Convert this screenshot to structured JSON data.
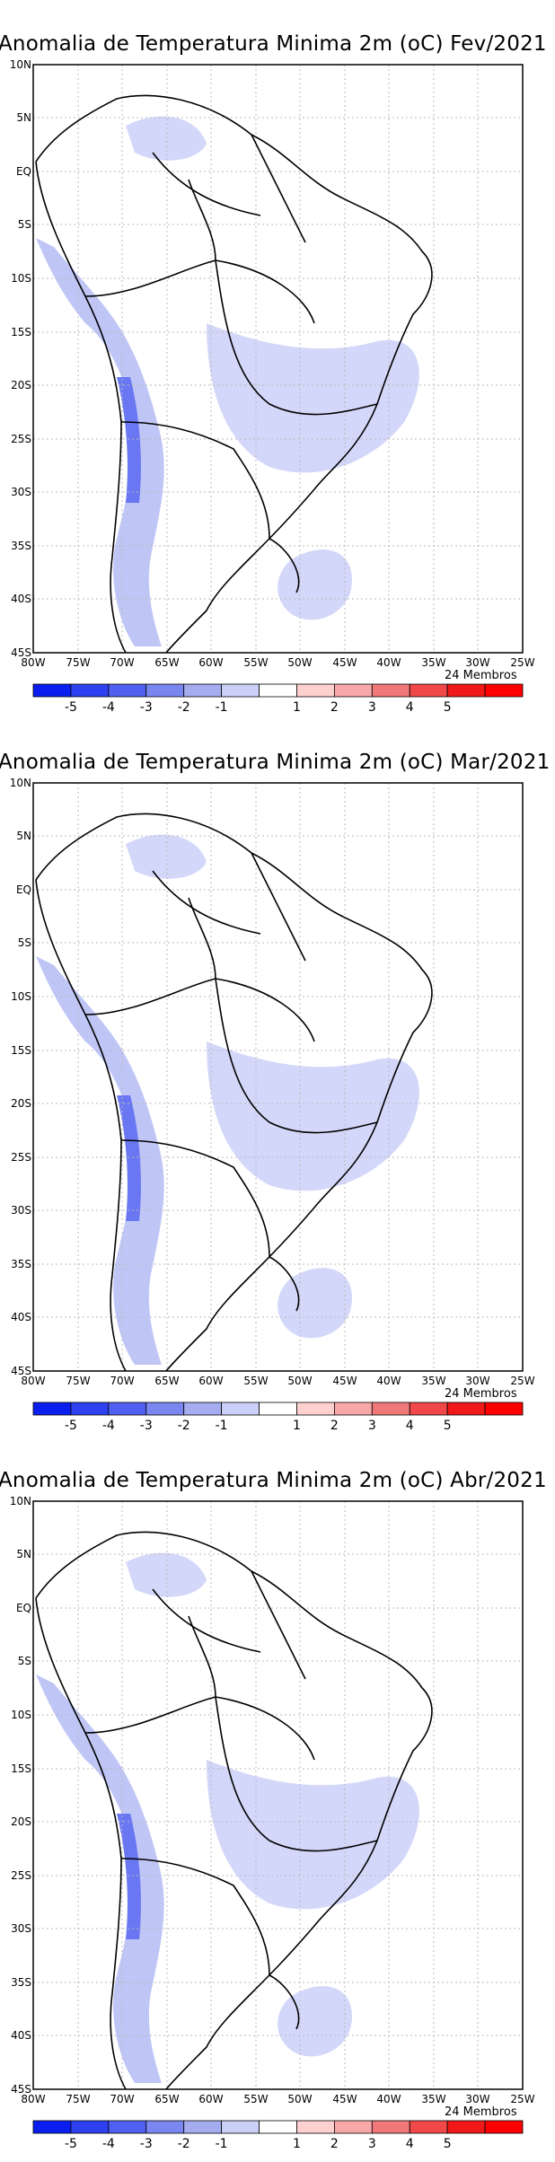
{
  "panels": [
    {
      "title": "Anomalia de Temperatura Minima 2m (oC) Fev/2021",
      "members": "24 Membros"
    },
    {
      "title": "Anomalia de Temperatura Minima 2m (oC) Mar/2021",
      "members": "24 Membros"
    },
    {
      "title": "Anomalia de Temperatura Minima 2m (oC) Abr/2021",
      "members": "24 Membros"
    }
  ],
  "map_extent": {
    "lon": [
      -80,
      -25
    ],
    "lat": [
      -45,
      10
    ]
  },
  "lat_ticks": [
    "10N",
    "5N",
    "EQ",
    "5S",
    "10S",
    "15S",
    "20S",
    "25S",
    "30S",
    "35S",
    "40S",
    "45S"
  ],
  "lon_ticks": [
    "80W",
    "75W",
    "70W",
    "65W",
    "60W",
    "55W",
    "50W",
    "45W",
    "40W",
    "35W",
    "30W",
    "25W"
  ],
  "colorbar": {
    "labels": [
      "-5",
      "-4",
      "-3",
      "-2",
      "-1",
      "1",
      "2",
      "3",
      "4",
      "5"
    ],
    "colors": [
      "#0a1ef0",
      "#2d41f0",
      "#5060f0",
      "#7b87f0",
      "#a5adf0",
      "#cbd0f8",
      "#ffffff",
      "#ffd0d0",
      "#f8a8a8",
      "#f07878",
      "#f04848",
      "#f01818",
      "#ff0000"
    ]
  },
  "grid": true,
  "icons": {
    "map": "south-america-map"
  }
}
